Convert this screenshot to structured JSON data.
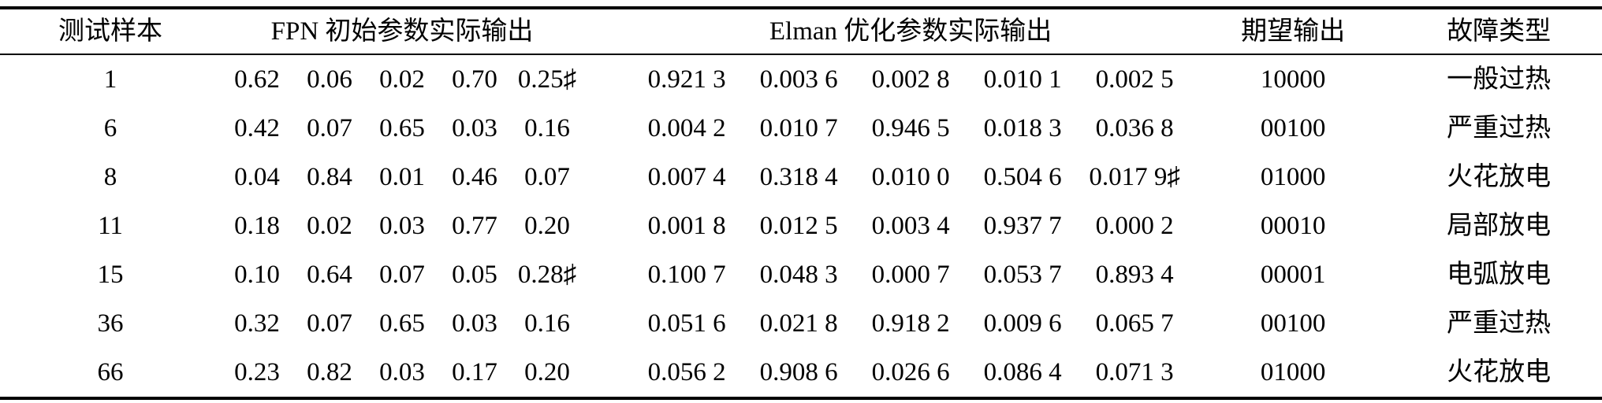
{
  "page": {
    "background": "#ffffff",
    "text_color": "#000000",
    "rule_color": "#000000"
  },
  "table": {
    "headers": {
      "sample": "测试样本",
      "fpn_group": "FPN 初始参数实际输出",
      "elman_group": "Elman 优化参数实际输出",
      "expected": "期望输出",
      "fault": "故障类型"
    },
    "rows": [
      {
        "sample": "1",
        "fpn": [
          "0.62",
          "0.06",
          "0.02",
          "0.70",
          "0.25♯"
        ],
        "elman": [
          "0.921 3",
          "0.003 6",
          "0.002 8",
          "0.010 1",
          "0.002 5"
        ],
        "expected": "10000",
        "fault": "一般过热"
      },
      {
        "sample": "6",
        "fpn": [
          "0.42",
          "0.07",
          "0.65",
          "0.03",
          "0.16"
        ],
        "elman": [
          "0.004 2",
          "0.010 7",
          "0.946 5",
          "0.018 3",
          "0.036 8"
        ],
        "expected": "00100",
        "fault": "严重过热"
      },
      {
        "sample": "8",
        "fpn": [
          "0.04",
          "0.84",
          "0.01",
          "0.46",
          "0.07"
        ],
        "elman": [
          "0.007 4",
          "0.318 4",
          "0.010 0",
          "0.504 6",
          "0.017 9♯"
        ],
        "expected": "01000",
        "fault": "火花放电"
      },
      {
        "sample": "11",
        "fpn": [
          "0.18",
          "0.02",
          "0.03",
          "0.77",
          "0.20"
        ],
        "elman": [
          "0.001 8",
          "0.012 5",
          "0.003 4",
          "0.937 7",
          "0.000 2"
        ],
        "expected": "00010",
        "fault": "局部放电"
      },
      {
        "sample": "15",
        "fpn": [
          "0.10",
          "0.64",
          "0.07",
          "0.05",
          "0.28♯"
        ],
        "elman": [
          "0.100 7",
          "0.048 3",
          "0.000 7",
          "0.053 7",
          "0.893 4"
        ],
        "expected": "00001",
        "fault": "电弧放电"
      },
      {
        "sample": "36",
        "fpn": [
          "0.32",
          "0.07",
          "0.65",
          "0.03",
          "0.16"
        ],
        "elman": [
          "0.051 6",
          "0.021 8",
          "0.918 2",
          "0.009 6",
          "0.065 7"
        ],
        "expected": "00100",
        "fault": "严重过热"
      },
      {
        "sample": "66",
        "fpn": [
          "0.23",
          "0.82",
          "0.03",
          "0.17",
          "0.20"
        ],
        "elman": [
          "0.056 2",
          "0.908 6",
          "0.026 6",
          "0.086 4",
          "0.071 3"
        ],
        "expected": "01000",
        "fault": "火花放电"
      }
    ]
  }
}
